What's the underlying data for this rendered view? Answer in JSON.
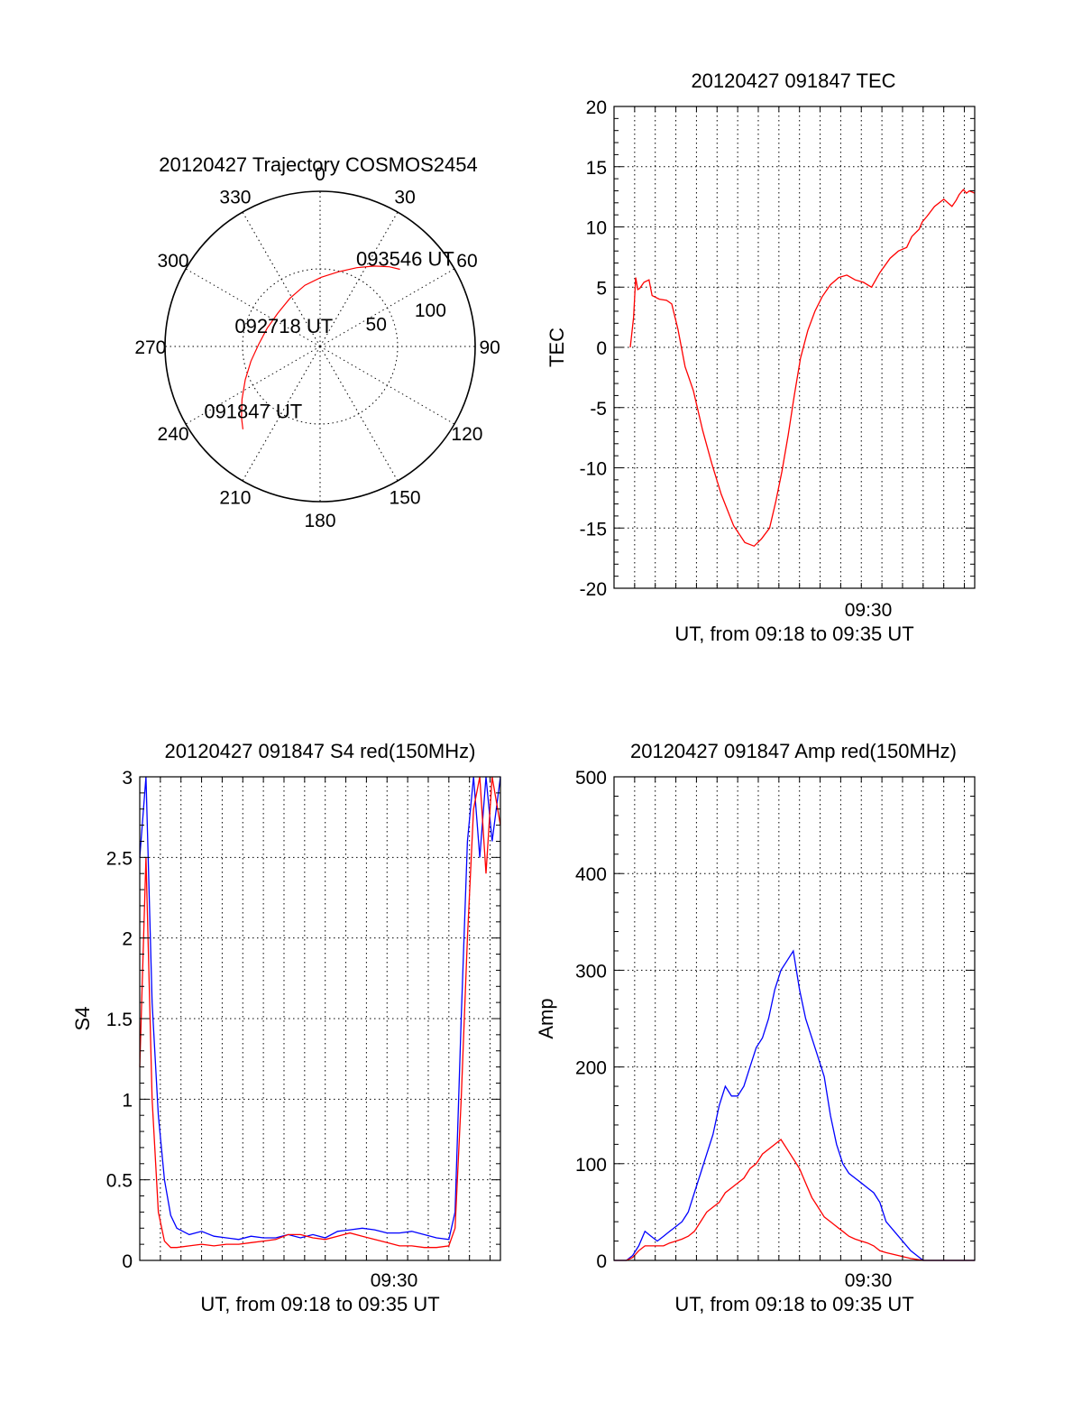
{
  "chart_data": [
    {
      "type": "polar",
      "title": "20120427 Trajectory COSMOS2454",
      "azimuth_labels": [
        "0",
        "30",
        "60",
        "90",
        "120",
        "150",
        "180",
        "210",
        "240",
        "270",
        "300",
        "330"
      ],
      "radius_labels": [
        "50",
        "100"
      ],
      "rmax": 100,
      "track": [
        {
          "az": 223,
          "r": 73.0
        },
        {
          "az": 228,
          "r": 68.2
        },
        {
          "az": 236,
          "r": 60.7
        },
        {
          "az": 246,
          "r": 52.8
        },
        {
          "az": 258,
          "r": 45.6
        },
        {
          "az": 272,
          "r": 39.6
        },
        {
          "az": 289,
          "r": 36.1
        },
        {
          "az": 308,
          "r": 34.7
        },
        {
          "az": 328,
          "r": 36.6
        },
        {
          "az": 346,
          "r": 40.6
        },
        {
          "az": 1,
          "r": 44.6
        },
        {
          "az": 14,
          "r": 49.6
        },
        {
          "az": 25,
          "r": 56.0
        },
        {
          "az": 34,
          "r": 62.5
        },
        {
          "az": 41,
          "r": 68.0
        },
        {
          "az": 46,
          "r": 71.6
        }
      ],
      "annotations": [
        {
          "text": "093546 UT",
          "az": 44,
          "r": 79
        },
        {
          "text": "092718 UT",
          "az": 300,
          "r": 27
        },
        {
          "text": "091847 UT",
          "az": 226,
          "r": 60
        }
      ],
      "track_color": "#ff0000"
    },
    {
      "type": "line",
      "title": "20120427 091847 TEC",
      "ylabel": "TEC",
      "xlabel": "UT, from 09:18 to 09:35 UT",
      "ylim": [
        -20,
        20
      ],
      "yticks": [
        "20",
        "15",
        "10",
        "5",
        "0",
        "-5",
        "-10",
        "-15",
        "-20"
      ],
      "xlim": [
        9.3,
        9.5917
      ],
      "xtick_label": "09:30",
      "grid": true,
      "series": [
        {
          "color": "#ff0000",
          "x": [
            9.3131,
            9.3158,
            9.3175,
            9.3192,
            9.3208,
            9.3242,
            9.3283,
            9.3308,
            9.3367,
            9.3425,
            9.3467,
            9.3517,
            9.3575,
            9.3642,
            9.3717,
            9.3792,
            9.3867,
            9.3967,
            9.4058,
            9.4133,
            9.4192,
            9.4258,
            9.4308,
            9.4358,
            9.4408,
            9.4458,
            9.4508,
            9.4567,
            9.4625,
            9.4683,
            9.475,
            9.4817,
            9.4883,
            9.495,
            9.5017,
            9.5083,
            9.515,
            9.5233,
            9.53,
            9.5367,
            9.5408,
            9.5467,
            9.5492,
            9.5533,
            9.5592,
            9.5667,
            9.5733,
            9.5767,
            9.5792,
            9.5825,
            9.585,
            9.5875,
            9.5917
          ],
          "y": [
            0.0,
            2.5,
            5.8,
            4.8,
            4.9,
            5.4,
            5.6,
            4.3,
            4.0,
            3.9,
            3.6,
            1.5,
            -1.6,
            -3.6,
            -6.9,
            -9.7,
            -12.2,
            -14.8,
            -16.2,
            -16.5,
            -15.9,
            -15.0,
            -12.8,
            -10.3,
            -7.3,
            -4.0,
            -0.9,
            1.4,
            3.0,
            4.2,
            5.2,
            5.8,
            6.0,
            5.6,
            5.4,
            5.0,
            6.2,
            7.4,
            8.0,
            8.3,
            9.2,
            9.8,
            10.4,
            10.9,
            11.7,
            12.3,
            11.7,
            12.2,
            12.7,
            13.1,
            12.8,
            13.0,
            12.8
          ]
        }
      ]
    },
    {
      "type": "line",
      "title": "20120427 091847 S4 red(150MHz)",
      "ylabel": "S4",
      "xlabel": "UT, from 09:18 to 09:35 UT",
      "ylim": [
        0,
        3
      ],
      "yticks": [
        "3",
        "2.5",
        "2",
        "1.5",
        "1",
        "0.5",
        "0"
      ],
      "xlim": [
        9.3,
        9.5917
      ],
      "xtick_label": "09:30",
      "grid": true,
      "series": [
        {
          "color": "#0000ff",
          "x": [
            9.3,
            9.305,
            9.31,
            9.315,
            9.32,
            9.325,
            9.33,
            9.34,
            9.35,
            9.36,
            9.37,
            9.38,
            9.39,
            9.4,
            9.41,
            9.42,
            9.43,
            9.44,
            9.45,
            9.46,
            9.47,
            9.48,
            9.49,
            9.5,
            9.51,
            9.52,
            9.53,
            9.54,
            9.55,
            9.555,
            9.56,
            9.565,
            9.57,
            9.575,
            9.58,
            9.585,
            9.5917
          ],
          "y": [
            2.5,
            3.0,
            1.6,
            0.9,
            0.5,
            0.28,
            0.2,
            0.16,
            0.18,
            0.15,
            0.14,
            0.13,
            0.15,
            0.14,
            0.14,
            0.16,
            0.14,
            0.16,
            0.14,
            0.18,
            0.19,
            0.2,
            0.19,
            0.17,
            0.17,
            0.18,
            0.16,
            0.14,
            0.13,
            0.3,
            1.5,
            2.6,
            3.0,
            2.5,
            3.0,
            2.6,
            3.0
          ]
        },
        {
          "color": "#ff0000",
          "x": [
            9.3,
            9.305,
            9.31,
            9.315,
            9.32,
            9.325,
            9.33,
            9.34,
            9.35,
            9.36,
            9.37,
            9.38,
            9.39,
            9.4,
            9.41,
            9.42,
            9.43,
            9.44,
            9.45,
            9.46,
            9.47,
            9.48,
            9.49,
            9.5,
            9.51,
            9.52,
            9.53,
            9.54,
            9.55,
            9.555,
            9.56,
            9.565,
            9.57,
            9.575,
            9.58,
            9.585,
            9.5917
          ],
          "y": [
            1.2,
            2.5,
            1.0,
            0.3,
            0.12,
            0.08,
            0.08,
            0.09,
            0.1,
            0.09,
            0.1,
            0.1,
            0.11,
            0.12,
            0.13,
            0.16,
            0.16,
            0.14,
            0.13,
            0.15,
            0.17,
            0.15,
            0.13,
            0.11,
            0.09,
            0.09,
            0.08,
            0.08,
            0.09,
            0.2,
            1.0,
            2.0,
            2.8,
            3.0,
            2.4,
            3.0,
            2.7
          ]
        }
      ]
    },
    {
      "type": "line",
      "title": "20120427 091847 Amp red(150MHz)",
      "ylabel": "Amp",
      "xlabel": "UT, from 09:18 to 09:35 UT",
      "ylim": [
        0,
        500
      ],
      "yticks": [
        "500",
        "400",
        "300",
        "200",
        "100",
        "0"
      ],
      "xlim": [
        9.3,
        9.5917
      ],
      "xtick_label": "09:30",
      "grid": true,
      "series": [
        {
          "color": "#0000ff",
          "x": [
            9.3,
            9.31,
            9.315,
            9.32,
            9.325,
            9.33,
            9.335,
            9.34,
            9.345,
            9.35,
            9.355,
            9.36,
            9.365,
            9.37,
            9.375,
            9.38,
            9.385,
            9.39,
            9.395,
            9.4,
            9.405,
            9.41,
            9.415,
            9.42,
            9.425,
            9.43,
            9.435,
            9.44,
            9.445,
            9.45,
            9.455,
            9.46,
            9.465,
            9.47,
            9.475,
            9.48,
            9.485,
            9.49,
            9.495,
            9.5,
            9.505,
            9.51,
            9.515,
            9.52,
            9.53,
            9.54,
            9.55,
            9.5917
          ],
          "y": [
            0,
            0,
            5,
            15,
            30,
            25,
            20,
            25,
            30,
            35,
            40,
            50,
            70,
            90,
            110,
            130,
            160,
            180,
            170,
            170,
            180,
            200,
            220,
            230,
            250,
            280,
            300,
            310,
            320,
            280,
            250,
            230,
            210,
            190,
            150,
            120,
            100,
            90,
            85,
            80,
            75,
            70,
            60,
            40,
            25,
            10,
            0,
            0
          ]
        },
        {
          "color": "#ff0000",
          "x": [
            9.3,
            9.31,
            9.315,
            9.32,
            9.325,
            9.33,
            9.335,
            9.34,
            9.345,
            9.35,
            9.355,
            9.36,
            9.365,
            9.37,
            9.375,
            9.38,
            9.385,
            9.39,
            9.395,
            9.4,
            9.405,
            9.41,
            9.415,
            9.42,
            9.425,
            9.43,
            9.435,
            9.44,
            9.445,
            9.45,
            9.455,
            9.46,
            9.465,
            9.47,
            9.475,
            9.48,
            9.485,
            9.49,
            9.495,
            9.5,
            9.505,
            9.51,
            9.515,
            9.52,
            9.53,
            9.54,
            9.55,
            9.5917
          ],
          "y": [
            0,
            0,
            3,
            10,
            15,
            15,
            15,
            15,
            18,
            20,
            22,
            25,
            30,
            40,
            50,
            55,
            60,
            70,
            75,
            80,
            85,
            95,
            100,
            110,
            115,
            120,
            125,
            115,
            105,
            95,
            80,
            65,
            55,
            45,
            40,
            35,
            30,
            25,
            22,
            20,
            18,
            15,
            10,
            8,
            5,
            2,
            0,
            0
          ]
        }
      ]
    }
  ]
}
